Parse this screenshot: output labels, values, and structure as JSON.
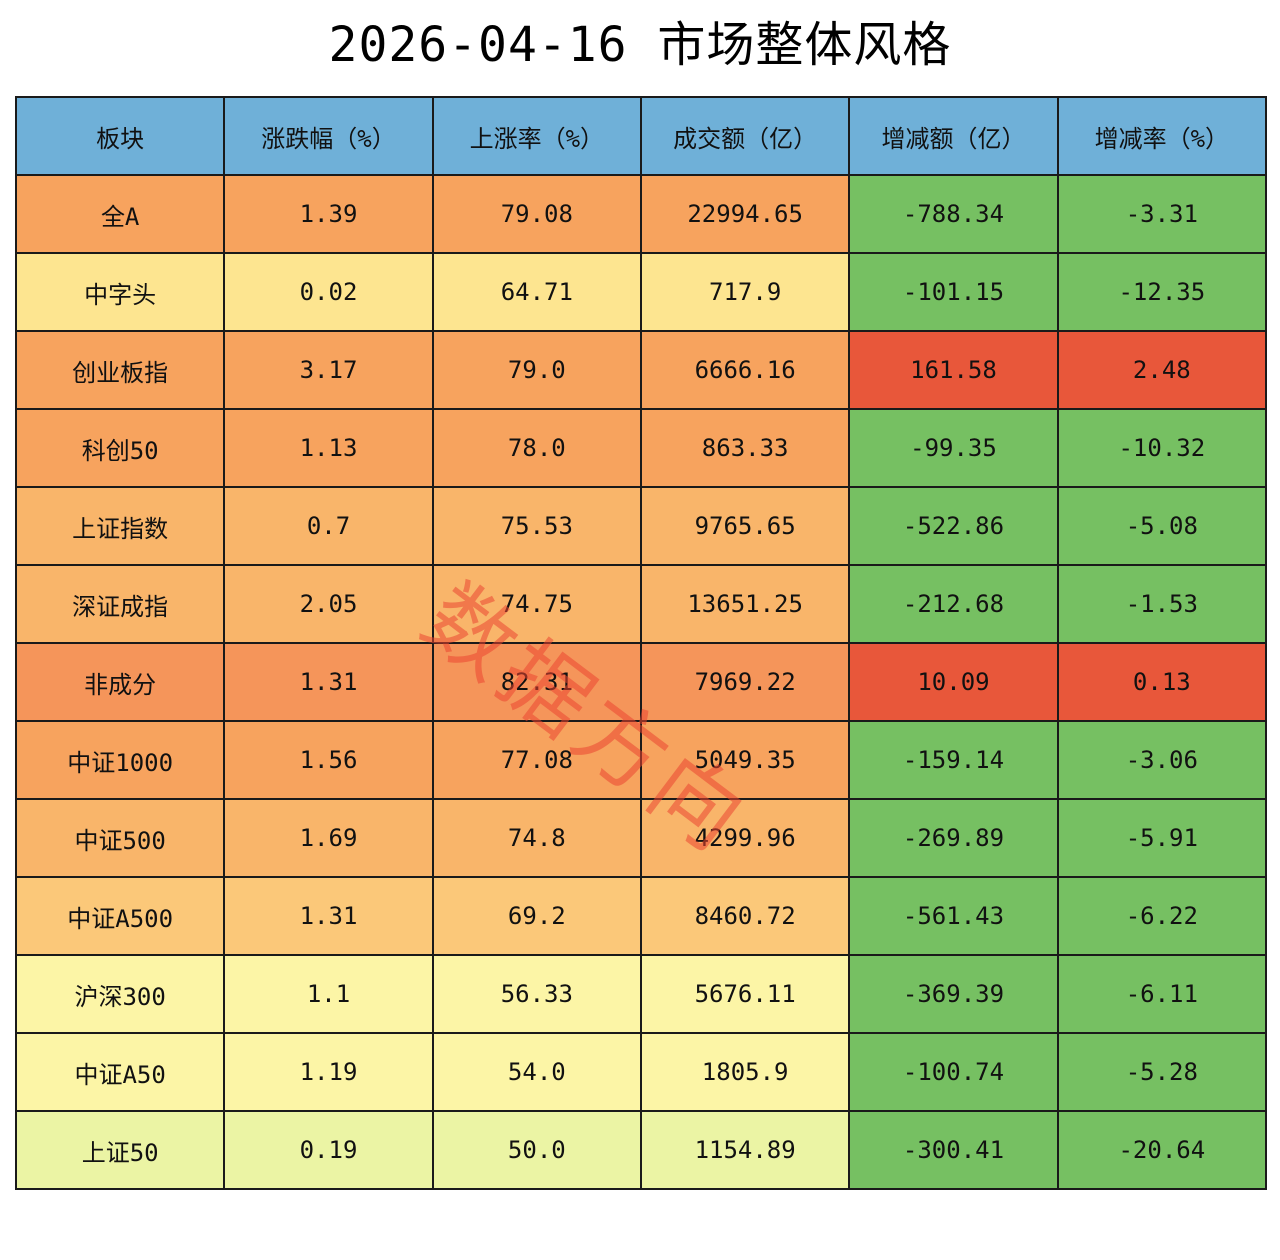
{
  "title": "2026-04-16 市场整体风格",
  "watermark": "数据方向",
  "colors": {
    "header_bg": "#6fb0d8",
    "orange_strong": "#f5955a",
    "orange": "#f7a35e",
    "orange_mid": "#f9b56a",
    "orange_light": "#fbc879",
    "yellow": "#fde590",
    "yellow_light": "#fcf5a6",
    "yellow_green": "#ebf4a4",
    "green": "#76c062",
    "red": "#e8573a"
  },
  "chart_data": {
    "type": "table",
    "title": "2026-04-16 市场整体风格",
    "columns": [
      "板块",
      "涨跌幅（%）",
      "上涨率（%）",
      "成交额（亿）",
      "增减额（亿）",
      "增减率（%）"
    ],
    "rows": [
      {
        "name": "全A",
        "change_pct": "1.39",
        "up_ratio": "79.08",
        "turnover": "22994.65",
        "delta_amt": "-788.34",
        "delta_pct": "-3.31",
        "left_color": "orange",
        "right_color": "green"
      },
      {
        "name": "中字头",
        "change_pct": "0.02",
        "up_ratio": "64.71",
        "turnover": "717.9",
        "delta_amt": "-101.15",
        "delta_pct": "-12.35",
        "left_color": "yellow",
        "right_color": "green"
      },
      {
        "name": "创业板指",
        "change_pct": "3.17",
        "up_ratio": "79.0",
        "turnover": "6666.16",
        "delta_amt": "161.58",
        "delta_pct": "2.48",
        "left_color": "orange",
        "right_color": "red"
      },
      {
        "name": "科创50",
        "change_pct": "1.13",
        "up_ratio": "78.0",
        "turnover": "863.33",
        "delta_amt": "-99.35",
        "delta_pct": "-10.32",
        "left_color": "orange",
        "right_color": "green"
      },
      {
        "name": "上证指数",
        "change_pct": "0.7",
        "up_ratio": "75.53",
        "turnover": "9765.65",
        "delta_amt": "-522.86",
        "delta_pct": "-5.08",
        "left_color": "orange_mid",
        "right_color": "green"
      },
      {
        "name": "深证成指",
        "change_pct": "2.05",
        "up_ratio": "74.75",
        "turnover": "13651.25",
        "delta_amt": "-212.68",
        "delta_pct": "-1.53",
        "left_color": "orange_mid",
        "right_color": "green"
      },
      {
        "name": "非成分",
        "change_pct": "1.31",
        "up_ratio": "82.31",
        "turnover": "7969.22",
        "delta_amt": "10.09",
        "delta_pct": "0.13",
        "left_color": "orange_strong",
        "right_color": "red"
      },
      {
        "name": "中证1000",
        "change_pct": "1.56",
        "up_ratio": "77.08",
        "turnover": "5049.35",
        "delta_amt": "-159.14",
        "delta_pct": "-3.06",
        "left_color": "orange",
        "right_color": "green"
      },
      {
        "name": "中证500",
        "change_pct": "1.69",
        "up_ratio": "74.8",
        "turnover": "4299.96",
        "delta_amt": "-269.89",
        "delta_pct": "-5.91",
        "left_color": "orange_mid",
        "right_color": "green"
      },
      {
        "name": "中证A500",
        "change_pct": "1.31",
        "up_ratio": "69.2",
        "turnover": "8460.72",
        "delta_amt": "-561.43",
        "delta_pct": "-6.22",
        "left_color": "orange_light",
        "right_color": "green"
      },
      {
        "name": "沪深300",
        "change_pct": "1.1",
        "up_ratio": "56.33",
        "turnover": "5676.11",
        "delta_amt": "-369.39",
        "delta_pct": "-6.11",
        "left_color": "yellow_light",
        "right_color": "green"
      },
      {
        "name": "中证A50",
        "change_pct": "1.19",
        "up_ratio": "54.0",
        "turnover": "1805.9",
        "delta_amt": "-100.74",
        "delta_pct": "-5.28",
        "left_color": "yellow_light",
        "right_color": "green"
      },
      {
        "name": "上证50",
        "change_pct": "0.19",
        "up_ratio": "50.0",
        "turnover": "1154.89",
        "delta_amt": "-300.41",
        "delta_pct": "-20.64",
        "left_color": "yellow_green",
        "right_color": "green"
      }
    ]
  }
}
